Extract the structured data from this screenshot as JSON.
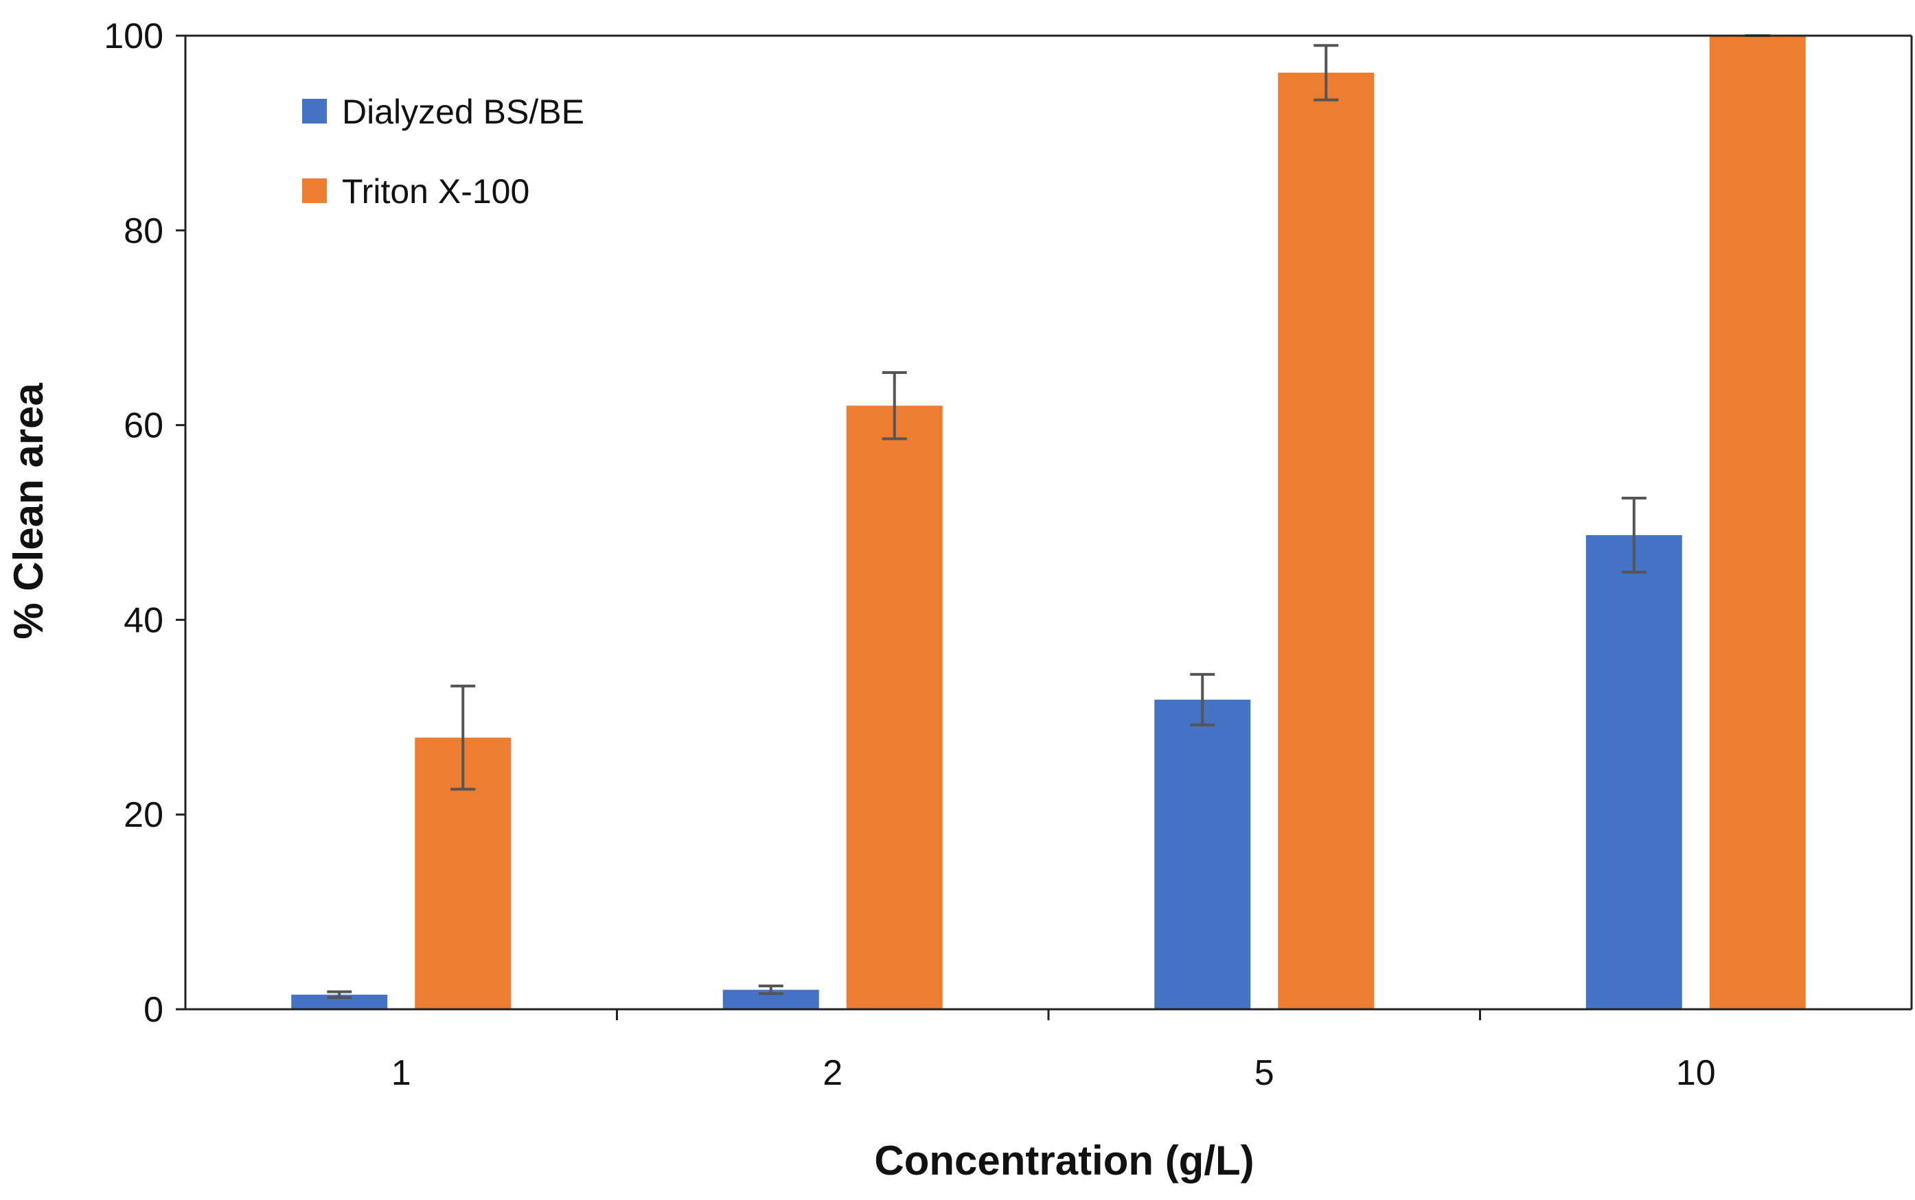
{
  "chart_data": {
    "type": "bar",
    "title": "",
    "xlabel": "Concentration (g/L)",
    "ylabel": "% Clean area",
    "categories": [
      "1",
      "2",
      "5",
      "10"
    ],
    "ylim": [
      0,
      100
    ],
    "yticks": [
      0,
      20,
      40,
      60,
      80,
      100
    ],
    "grid": false,
    "legend_position": "top-left",
    "series": [
      {
        "name": "Dialyzed BS/BE",
        "color": "#4472C4",
        "values": [
          1.5,
          2.0,
          31.8,
          48.7
        ],
        "errors": [
          0.3,
          0.4,
          2.6,
          3.8
        ]
      },
      {
        "name": "Triton X-100",
        "color": "#ED7D31",
        "values": [
          27.9,
          62.0,
          96.2,
          100
        ],
        "errors": [
          5.3,
          3.4,
          2.8,
          0
        ]
      }
    ],
    "axis_color": "#222222",
    "error_bar_color": "#555555"
  }
}
